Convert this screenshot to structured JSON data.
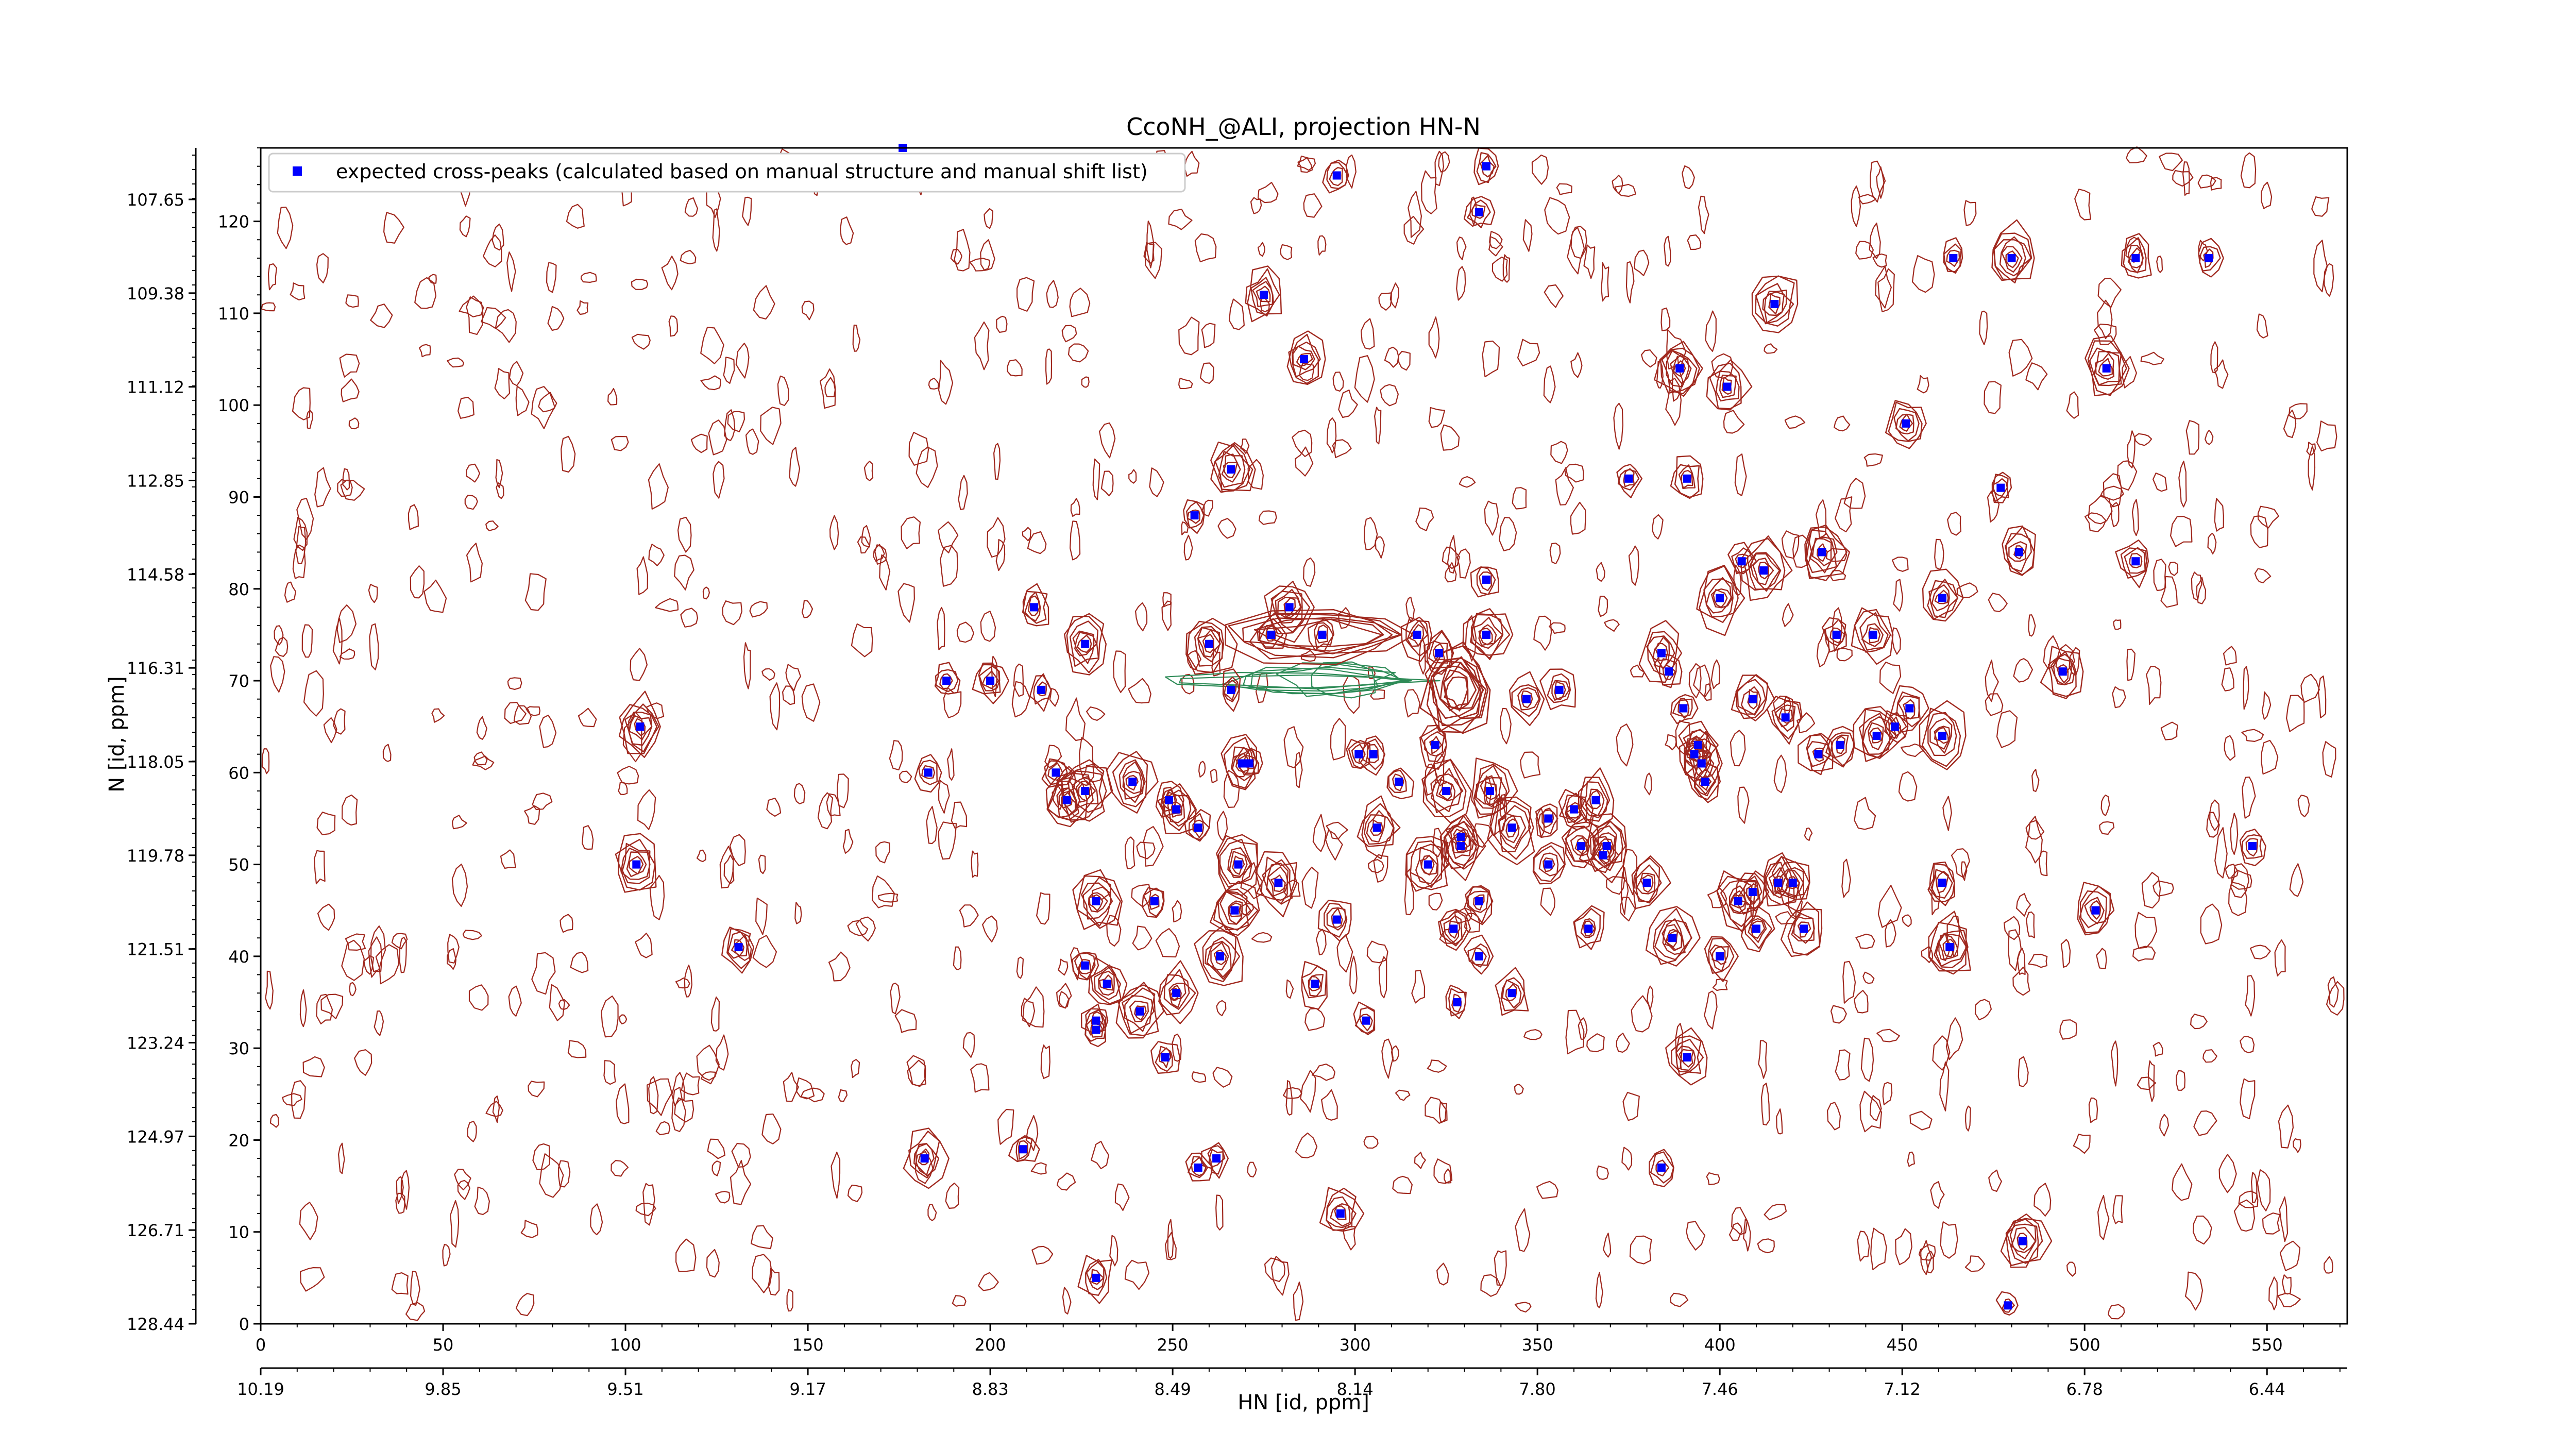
{
  "chart_data": {
    "type": "scatter",
    "title": "CcoNH_@ALI, projection HN-N",
    "xlabel": "HN [id, ppm]",
    "ylabel": "N [id, ppm]",
    "xlim": [
      0,
      572
    ],
    "ylim": [
      0,
      128
    ],
    "x_ticks": [
      0,
      50,
      100,
      150,
      200,
      250,
      300,
      350,
      400,
      450,
      500,
      550
    ],
    "y_ticks": [
      0,
      10,
      20,
      30,
      40,
      50,
      60,
      70,
      80,
      90,
      100,
      110,
      120
    ],
    "hn_ppm_ticks": [
      "10.19",
      "9.85",
      "9.51",
      "9.17",
      "8.83",
      "8.49",
      "8.14",
      "7.80",
      "7.46",
      "7.12",
      "6.78",
      "6.44"
    ],
    "n_ppm_ticks": [
      "128.44",
      "126.71",
      "124.97",
      "123.24",
      "121.51",
      "119.78",
      "118.05",
      "116.31",
      "114.58",
      "112.85",
      "111.12",
      "109.38",
      "107.65"
    ],
    "legend": {
      "position": "top-left",
      "entries": [
        "expected cross-peaks (calculated based on manual structure and manual shift list)"
      ]
    },
    "grid": false,
    "colors": {
      "peaks": "#0000ff",
      "positive_contours": "#a0281e",
      "negative_contours": "#2e8b57"
    },
    "series": [
      {
        "name": "expected cross-peaks (calculated based on manual structure and manual shift list)",
        "points": [
          [
            295,
            125
          ],
          [
            336,
            126
          ],
          [
            334,
            121
          ],
          [
            176,
            128
          ],
          [
            275,
            112
          ],
          [
            286,
            105
          ],
          [
            415,
            111
          ],
          [
            464,
            116
          ],
          [
            480,
            116
          ],
          [
            506,
            104
          ],
          [
            514,
            116
          ],
          [
            534,
            116
          ],
          [
            389,
            104
          ],
          [
            402,
            102
          ],
          [
            451,
            98
          ],
          [
            375,
            92
          ],
          [
            391,
            92
          ],
          [
            477,
            91
          ],
          [
            266,
            93
          ],
          [
            256,
            88
          ],
          [
            482,
            84
          ],
          [
            514,
            83
          ],
          [
            428,
            84
          ],
          [
            406,
            83
          ],
          [
            412,
            82
          ],
          [
            400,
            79
          ],
          [
            461,
            79
          ],
          [
            212,
            78
          ],
          [
            336,
            81
          ],
          [
            282,
            78
          ],
          [
            226,
            74
          ],
          [
            260,
            74
          ],
          [
            277,
            75
          ],
          [
            291,
            75
          ],
          [
            317,
            75
          ],
          [
            323,
            73
          ],
          [
            336,
            75
          ],
          [
            432,
            75
          ],
          [
            442,
            75
          ],
          [
            384,
            73
          ],
          [
            386,
            71
          ],
          [
            356,
            69
          ],
          [
            494,
            71
          ],
          [
            188,
            70
          ],
          [
            200,
            70
          ],
          [
            214,
            69
          ],
          [
            266,
            69
          ],
          [
            347,
            68
          ],
          [
            390,
            67
          ],
          [
            104,
            65
          ],
          [
            394,
            63
          ],
          [
            409,
            68
          ],
          [
            418,
            66
          ],
          [
            433,
            63
          ],
          [
            443,
            64
          ],
          [
            448,
            65
          ],
          [
            452,
            67
          ],
          [
            461,
            64
          ],
          [
            393,
            62
          ],
          [
            395,
            61
          ],
          [
            396,
            59
          ],
          [
            427,
            62
          ],
          [
            322,
            63
          ],
          [
            301,
            62
          ],
          [
            305,
            62
          ],
          [
            269,
            61
          ],
          [
            271,
            61
          ],
          [
            183,
            60
          ],
          [
            218,
            60
          ],
          [
            312,
            59
          ],
          [
            239,
            59
          ],
          [
            325,
            58
          ],
          [
            226,
            58
          ],
          [
            221,
            57
          ],
          [
            337,
            58
          ],
          [
            249,
            57
          ],
          [
            251,
            56
          ],
          [
            360,
            56
          ],
          [
            366,
            57
          ],
          [
            353,
            55
          ],
          [
            343,
            54
          ],
          [
            257,
            54
          ],
          [
            306,
            54
          ],
          [
            329,
            53
          ],
          [
            329,
            52
          ],
          [
            362,
            52
          ],
          [
            353,
            50
          ],
          [
            368,
            51
          ],
          [
            369,
            52
          ],
          [
            268,
            50
          ],
          [
            245,
            46
          ],
          [
            229,
            46
          ],
          [
            320,
            50
          ],
          [
            279,
            48
          ],
          [
            380,
            48
          ],
          [
            103,
            50
          ],
          [
            546,
            52
          ],
          [
            461,
            48
          ],
          [
            409,
            47
          ],
          [
            416,
            48
          ],
          [
            420,
            48
          ],
          [
            267,
            45
          ],
          [
            405,
            46
          ],
          [
            334,
            46
          ],
          [
            295,
            44
          ],
          [
            410,
            43
          ],
          [
            364,
            43
          ],
          [
            334,
            40
          ],
          [
            423,
            43
          ],
          [
            131,
            41
          ],
          [
            327,
            43
          ],
          [
            387,
            42
          ],
          [
            463,
            41
          ],
          [
            400,
            40
          ],
          [
            503,
            45
          ],
          [
            263,
            40
          ],
          [
            226,
            39
          ],
          [
            232,
            37
          ],
          [
            289,
            37
          ],
          [
            251,
            36
          ],
          [
            343,
            36
          ],
          [
            328,
            35
          ],
          [
            241,
            34
          ],
          [
            229,
            33
          ],
          [
            229,
            32
          ],
          [
            303,
            33
          ],
          [
            248,
            29
          ],
          [
            391,
            29
          ],
          [
            182,
            18
          ],
          [
            209,
            19
          ],
          [
            262,
            18
          ],
          [
            257,
            17
          ],
          [
            384,
            17
          ],
          [
            296,
            12
          ],
          [
            483,
            9
          ],
          [
            229,
            5
          ],
          [
            479,
            2
          ]
        ]
      }
    ]
  }
}
